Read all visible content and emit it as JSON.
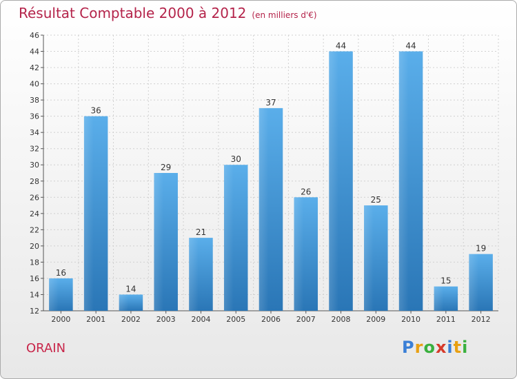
{
  "header": {
    "title": "Résultat Comptable 2000 à 2012",
    "subtitle": "(en milliers d'€)"
  },
  "footer": {
    "commune": "ORAIN",
    "logo_letters": [
      "P",
      "r",
      "o",
      "x",
      "i",
      "t",
      "i"
    ]
  },
  "colors": {
    "title": "#b4234a",
    "bar_top": "#5aaeea",
    "bar_bottom": "#2a76b6",
    "logo": [
      "#3a7fd6",
      "#e8a013",
      "#3ab03e",
      "#d63a2a",
      "#3a7fd6",
      "#e8a013",
      "#3ab03e"
    ]
  },
  "chart_data": {
    "type": "bar",
    "categories": [
      "2000",
      "2001",
      "2002",
      "2003",
      "2004",
      "2005",
      "2006",
      "2007",
      "2008",
      "2009",
      "2010",
      "2011",
      "2012"
    ],
    "values": [
      16,
      36,
      14,
      29,
      21,
      30,
      37,
      26,
      44,
      25,
      44,
      15,
      19
    ],
    "ylim": [
      12,
      46
    ],
    "yticks": [
      12,
      14,
      16,
      18,
      20,
      22,
      24,
      26,
      28,
      30,
      32,
      34,
      36,
      38,
      40,
      42,
      44,
      46
    ],
    "grid": true
  }
}
